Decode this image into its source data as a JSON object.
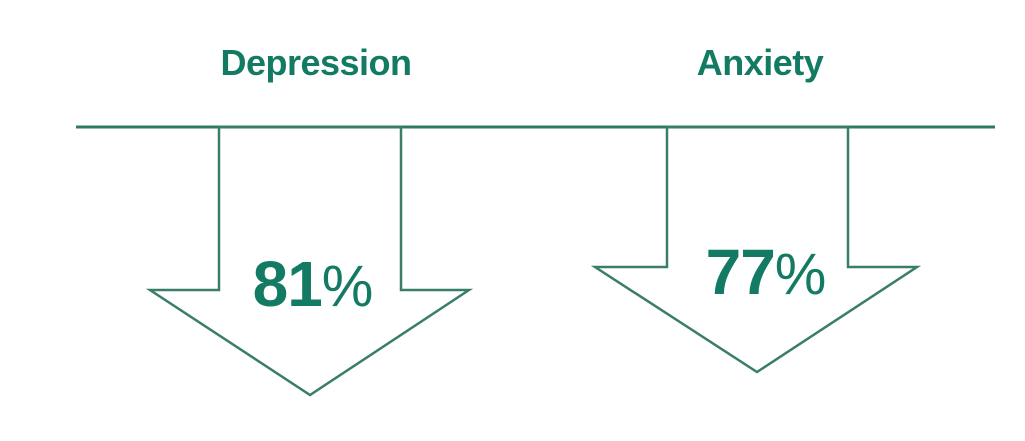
{
  "colors": {
    "accent": "#137a63",
    "line": "#2f7a63",
    "arrow_outline": "#3a7d6b"
  },
  "items": [
    {
      "label": "Depression",
      "value": "81",
      "unit": "%"
    },
    {
      "label": "Anxiety",
      "value": "77",
      "unit": "%"
    }
  ]
}
